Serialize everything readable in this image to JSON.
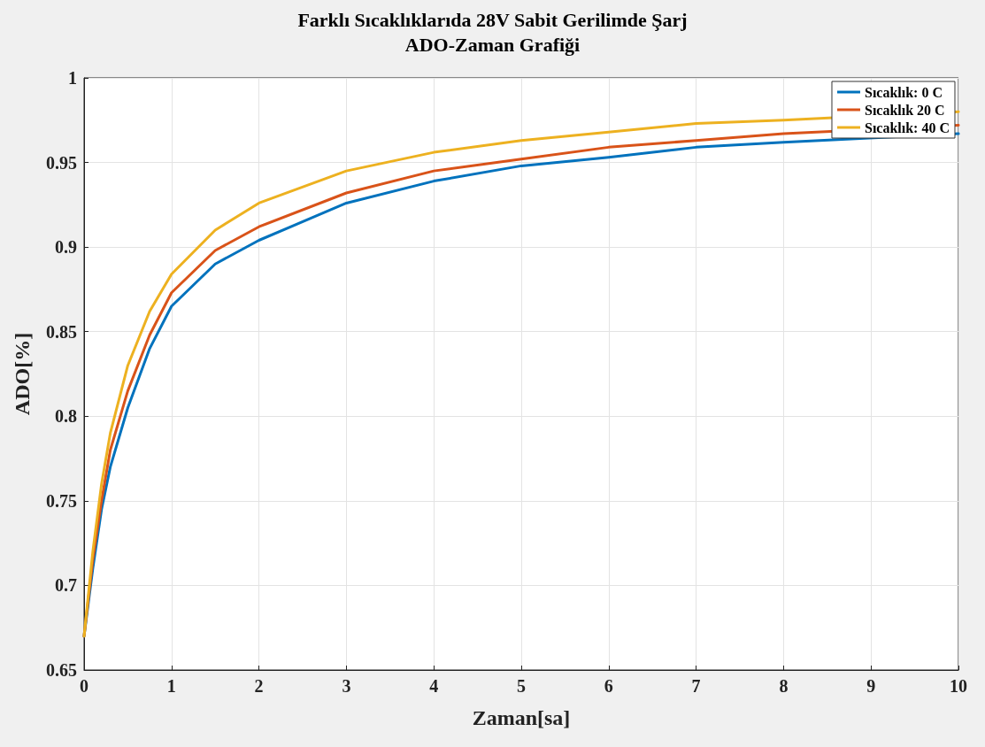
{
  "chart_data": {
    "type": "line",
    "title": "Farklı Sıcaklıklarıda 28V Sabit Gerilimde Şarj",
    "subtitle": "ADO-Zaman Grafiği",
    "xlabel": "Zaman[sa]",
    "ylabel": "ADO[%]",
    "x": [
      0,
      0.1,
      0.2,
      0.3,
      0.5,
      0.75,
      1,
      1.5,
      2,
      3,
      4,
      5,
      6,
      7,
      8,
      9,
      10
    ],
    "series": [
      {
        "name": "Sıcaklık: 0 C",
        "color": "#0072bd",
        "values": [
          0.67,
          0.71,
          0.745,
          0.77,
          0.805,
          0.84,
          0.865,
          0.89,
          0.904,
          0.926,
          0.939,
          0.948,
          0.953,
          0.959,
          0.962,
          null,
          0.967
        ]
      },
      {
        "name": "Sıcaklık 20 C",
        "color": "#d95319",
        "values": [
          0.67,
          0.715,
          0.75,
          0.78,
          0.815,
          0.848,
          0.873,
          0.898,
          0.912,
          0.932,
          0.945,
          0.952,
          0.959,
          0.963,
          0.967,
          null,
          0.972
        ]
      },
      {
        "name": "Sıcaklık: 40 C",
        "color": "#edb120",
        "values": [
          0.67,
          0.72,
          0.76,
          0.79,
          0.83,
          0.862,
          0.884,
          0.91,
          0.926,
          0.945,
          0.956,
          0.963,
          0.968,
          0.973,
          0.975,
          null,
          0.98
        ]
      }
    ],
    "xlim": [
      0,
      10
    ],
    "xticks": [
      0,
      1,
      2,
      3,
      4,
      5,
      6,
      7,
      8,
      9,
      10
    ],
    "ylim": [
      0.65,
      1
    ],
    "yticks": [
      0.65,
      0.7,
      0.75,
      0.8,
      0.85,
      0.9,
      0.95,
      1
    ],
    "grid": true,
    "legend": "top right",
    "marker": "none",
    "line_style": "solid"
  }
}
